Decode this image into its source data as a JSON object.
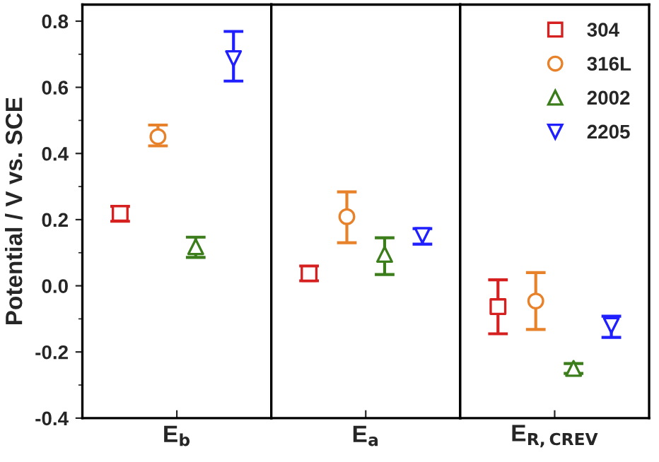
{
  "chart_data": [
    {
      "type": "scatter",
      "ylabel": "Potential / V vs. SCE",
      "categories": [
        "E$_{b}$"
      ],
      "ylim": [
        -0.4,
        0.85
      ],
      "yticks": [
        -0.4,
        {
          "value": -0.3,
          "label": null
        },
        -0.2,
        {
          "value": -0.1,
          "label": null
        },
        {
          "value": 0,
          "label": "0.0"
        },
        {
          "value": 0.1,
          "label": null
        },
        0.2,
        {
          "value": 0.3,
          "label": null
        },
        0.4,
        {
          "value": 0.5,
          "label": null
        },
        0.6,
        {
          "value": 0.7,
          "label": null
        },
        0.8
      ],
      "legend": false,
      "series": [
        {
          "color": "#d62020",
          "marker": "square",
          "values": [
            0.219
          ],
          "errors": [
            [
              0.195,
              0.24
            ]
          ]
        },
        {
          "color": "#e8822a",
          "marker": "circle",
          "values": [
            0.451
          ],
          "errors": [
            [
              0.423,
              0.486
            ]
          ]
        },
        {
          "color": "#3a7d1a",
          "marker": "triangle",
          "values": [
            0.118
          ],
          "errors": [
            [
              0.086,
              0.147
            ]
          ]
        },
        {
          "color": "#1f1fff",
          "marker": "triangle_down",
          "values": [
            0.687
          ],
          "errors": [
            [
              0.619,
              0.769
            ]
          ]
        }
      ]
    },
    {
      "type": "scatter",
      "categories": [
        "E$_{a}$"
      ],
      "ylim": [
        -0.4,
        0.85
      ],
      "tick_labels": "x",
      "legend": false,
      "series": [
        {
          "color": "#d62020",
          "marker": "square",
          "values": [
            0.037
          ],
          "errors": [
            [
              0.015,
              0.06
            ]
          ]
        },
        {
          "color": "#e8822a",
          "marker": "circle",
          "values": [
            0.209
          ],
          "errors": [
            [
              0.13,
              0.284
            ]
          ]
        },
        {
          "color": "#3a7d1a",
          "marker": "triangle",
          "values": [
            0.095
          ],
          "errors": [
            [
              0.034,
              0.145
            ]
          ]
        },
        {
          "color": "#1f1fff",
          "marker": "triangle_down",
          "values": [
            0.152
          ],
          "errors": [
            [
              0.126,
              0.173
            ]
          ]
        }
      ]
    },
    {
      "type": "scatter",
      "categories": [
        "E$_{R,CREV}$"
      ],
      "ylim": [
        -0.4,
        0.85
      ],
      "tick_labels": "x",
      "legend": "top right",
      "series": [
        {
          "name": "304",
          "color": "#d62020",
          "marker": "square",
          "values": [
            -0.063
          ],
          "errors": [
            [
              -0.145,
              0.018
            ]
          ]
        },
        {
          "name": "316L",
          "color": "#e8822a",
          "marker": "circle",
          "values": [
            -0.046
          ],
          "errors": [
            [
              -0.132,
              0.04
            ]
          ]
        },
        {
          "name": "2002",
          "color": "#3a7d1a",
          "marker": "triangle",
          "values": [
            -0.25
          ],
          "errors": [
            [
              -0.265,
              -0.235
            ]
          ]
        },
        {
          "name": "2205",
          "color": "#1f1fff",
          "marker": "triangle_down",
          "values": [
            -0.12
          ],
          "errors": [
            [
              -0.156,
              -0.092
            ]
          ]
        }
      ]
    }
  ]
}
